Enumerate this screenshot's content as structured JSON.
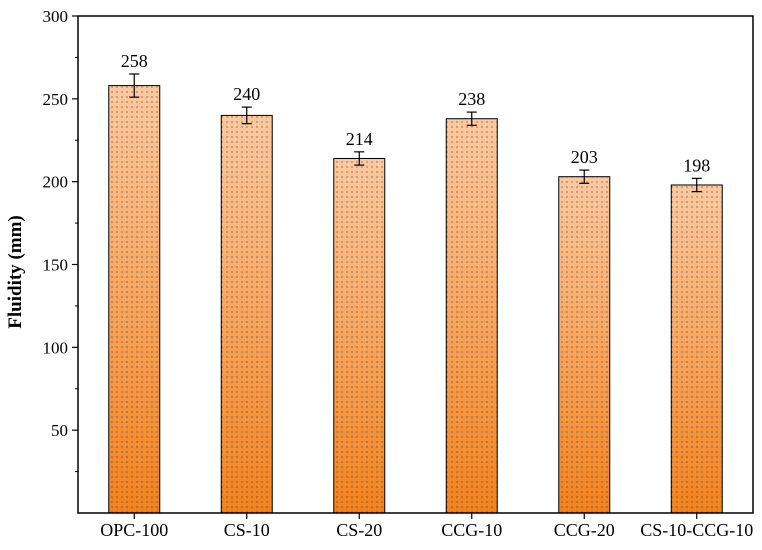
{
  "chart_data": {
    "type": "bar",
    "title": "",
    "xlabel": "",
    "ylabel": "Fluidity (mm)",
    "ylim": [
      0,
      300
    ],
    "y_ticks": [
      50,
      100,
      150,
      200,
      250,
      300
    ],
    "categories": [
      "OPC-100",
      "CS-10",
      "CS-20",
      "CCG-10",
      "CCG-20",
      "CS-10-CCG-10"
    ],
    "values": [
      258,
      240,
      214,
      238,
      203,
      198
    ],
    "errors": [
      7,
      5,
      4,
      4,
      4,
      4
    ],
    "data_labels": [
      "258",
      "240",
      "214",
      "238",
      "203",
      "198"
    ],
    "grid": false,
    "colors": {
      "bar_top": "#fcc9a0",
      "bar_bottom": "#f2821f",
      "stipple": "#3a2a1a",
      "axis": "#000000"
    }
  }
}
